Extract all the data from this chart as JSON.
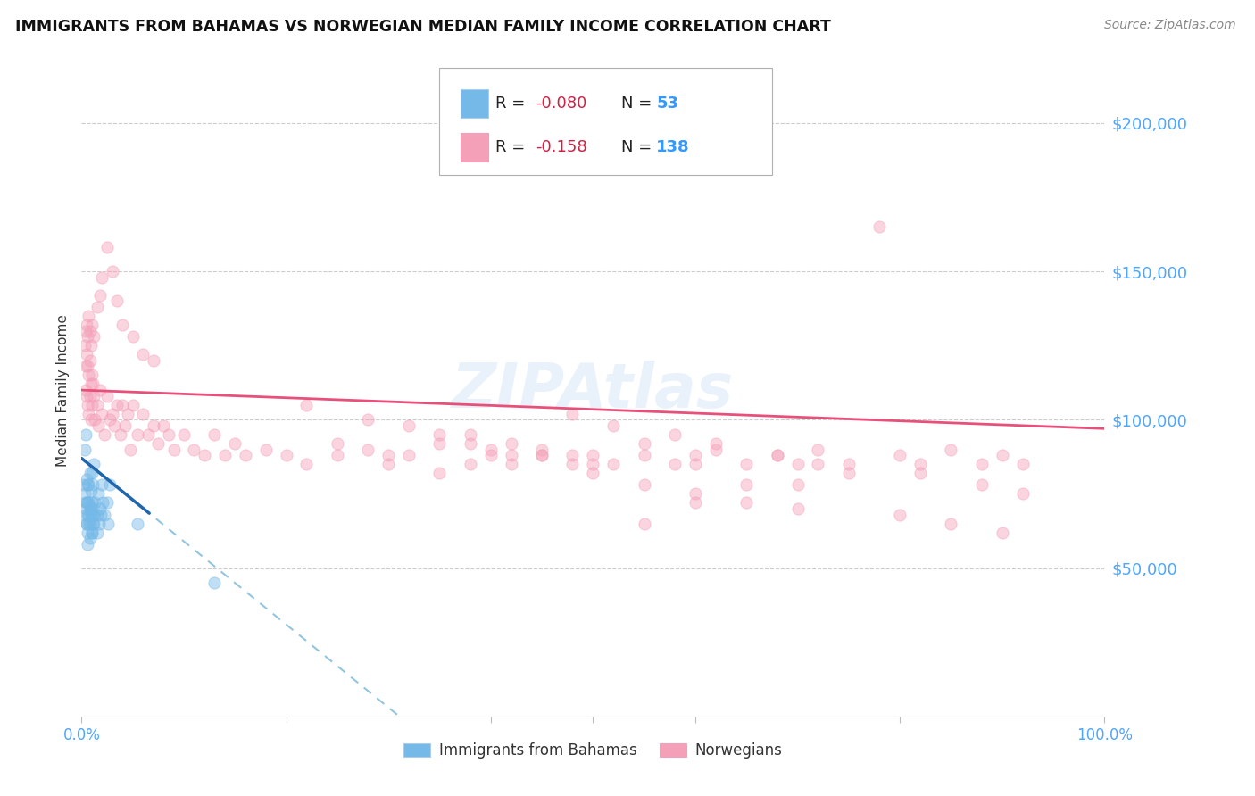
{
  "title": "IMMIGRANTS FROM BAHAMAS VS NORWEGIAN MEDIAN FAMILY INCOME CORRELATION CHART",
  "source": "Source: ZipAtlas.com",
  "ylabel": "Median Family Income",
  "y_ticks": [
    50000,
    100000,
    150000,
    200000
  ],
  "y_tick_labels": [
    "$50,000",
    "$100,000",
    "$150,000",
    "$200,000"
  ],
  "y_min": 0,
  "y_max": 220000,
  "x_min": 0.0,
  "x_max": 1.0,
  "legend_r1": "R = -0.080",
  "legend_n1": "N =  53",
  "legend_r2": "R =  -0.158",
  "legend_n2": "N = 138",
  "blue_color": "#74b9e8",
  "pink_color": "#f4a0b8",
  "trend_blue_solid_color": "#2166ac",
  "trend_blue_dash_color": "#92c5de",
  "trend_pink_color": "#e8507a",
  "tick_label_color": "#4da6ff",
  "r_color": "#cc2244",
  "n_color": "#3399ff",
  "watermark": "ZIPAtlas",
  "blue_scatter_x": [
    0.002,
    0.003,
    0.003,
    0.004,
    0.004,
    0.005,
    0.005,
    0.005,
    0.006,
    0.006,
    0.006,
    0.006,
    0.007,
    0.007,
    0.007,
    0.008,
    0.008,
    0.008,
    0.009,
    0.009,
    0.01,
    0.01,
    0.01,
    0.011,
    0.011,
    0.012,
    0.012,
    0.013,
    0.015,
    0.015,
    0.016,
    0.017,
    0.018,
    0.019,
    0.02,
    0.021,
    0.022,
    0.025,
    0.026,
    0.028,
    0.003,
    0.004,
    0.005,
    0.006,
    0.007,
    0.008,
    0.009,
    0.01,
    0.01,
    0.011,
    0.012,
    0.055,
    0.13
  ],
  "blue_scatter_y": [
    78000,
    90000,
    75000,
    95000,
    70000,
    80000,
    72000,
    65000,
    78000,
    68000,
    62000,
    58000,
    78000,
    72000,
    65000,
    82000,
    70000,
    60000,
    76000,
    68000,
    82000,
    72000,
    62000,
    78000,
    70000,
    85000,
    65000,
    72000,
    68000,
    62000,
    75000,
    65000,
    70000,
    68000,
    78000,
    72000,
    68000,
    72000,
    65000,
    78000,
    68000,
    72000,
    65000,
    72000,
    68000,
    65000,
    70000,
    68000,
    62000,
    65000,
    68000,
    65000,
    45000
  ],
  "pink_scatter_x": [
    0.003,
    0.004,
    0.004,
    0.005,
    0.005,
    0.006,
    0.006,
    0.007,
    0.007,
    0.008,
    0.008,
    0.009,
    0.009,
    0.01,
    0.01,
    0.011,
    0.012,
    0.013,
    0.015,
    0.016,
    0.018,
    0.02,
    0.022,
    0.025,
    0.028,
    0.03,
    0.032,
    0.035,
    0.038,
    0.04,
    0.042,
    0.045,
    0.048,
    0.05,
    0.055,
    0.06,
    0.065,
    0.07,
    0.075,
    0.08,
    0.085,
    0.09,
    0.1,
    0.11,
    0.12,
    0.13,
    0.14,
    0.15,
    0.16,
    0.18,
    0.2,
    0.22,
    0.25,
    0.28,
    0.3,
    0.32,
    0.35,
    0.38,
    0.4,
    0.42,
    0.45,
    0.48,
    0.5,
    0.52,
    0.55,
    0.58,
    0.6,
    0.62,
    0.65,
    0.68,
    0.7,
    0.72,
    0.75,
    0.78,
    0.8,
    0.82,
    0.85,
    0.88,
    0.9,
    0.92,
    0.004,
    0.005,
    0.006,
    0.007,
    0.008,
    0.009,
    0.01,
    0.012,
    0.015,
    0.018,
    0.02,
    0.025,
    0.03,
    0.035,
    0.04,
    0.05,
    0.06,
    0.07,
    0.35,
    0.55,
    0.6,
    0.65,
    0.45,
    0.5,
    0.25,
    0.3,
    0.7,
    0.75,
    0.55,
    0.6,
    0.4,
    0.45,
    0.5,
    0.55,
    0.6,
    0.65,
    0.7,
    0.8,
    0.85,
    0.9,
    0.48,
    0.52,
    0.58,
    0.62,
    0.68,
    0.72,
    0.82,
    0.88,
    0.92,
    0.35,
    0.38,
    0.42,
    0.22,
    0.28,
    0.32,
    0.38,
    0.42,
    0.48
  ],
  "pink_scatter_y": [
    125000,
    118000,
    110000,
    122000,
    108000,
    118000,
    105000,
    115000,
    102000,
    120000,
    108000,
    112000,
    100000,
    115000,
    105000,
    112000,
    108000,
    100000,
    105000,
    98000,
    110000,
    102000,
    95000,
    108000,
    100000,
    102000,
    98000,
    105000,
    95000,
    105000,
    98000,
    102000,
    90000,
    105000,
    95000,
    102000,
    95000,
    98000,
    92000,
    98000,
    95000,
    90000,
    95000,
    90000,
    88000,
    95000,
    88000,
    92000,
    88000,
    90000,
    88000,
    85000,
    88000,
    90000,
    85000,
    88000,
    92000,
    85000,
    88000,
    85000,
    90000,
    85000,
    88000,
    85000,
    92000,
    85000,
    88000,
    90000,
    85000,
    88000,
    85000,
    90000,
    85000,
    165000,
    88000,
    85000,
    90000,
    85000,
    88000,
    85000,
    130000,
    132000,
    128000,
    135000,
    130000,
    125000,
    132000,
    128000,
    138000,
    142000,
    148000,
    158000,
    150000,
    140000,
    132000,
    128000,
    122000,
    120000,
    82000,
    65000,
    72000,
    78000,
    88000,
    85000,
    92000,
    88000,
    78000,
    82000,
    88000,
    85000,
    90000,
    88000,
    82000,
    78000,
    75000,
    72000,
    70000,
    68000,
    65000,
    62000,
    102000,
    98000,
    95000,
    92000,
    88000,
    85000,
    82000,
    78000,
    75000,
    95000,
    92000,
    88000,
    105000,
    100000,
    98000,
    95000,
    92000,
    88000
  ]
}
